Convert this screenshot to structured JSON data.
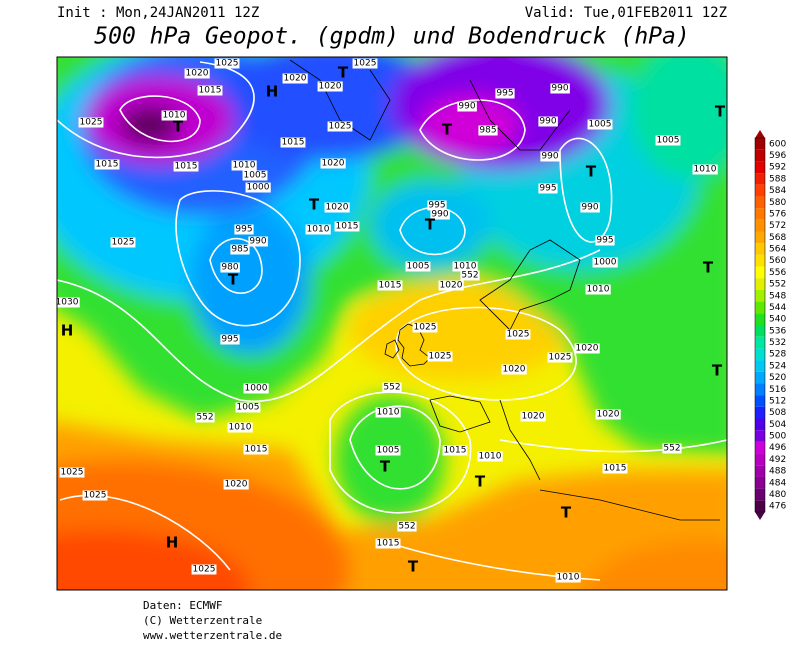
{
  "header": {
    "init": "Init : Mon,24JAN2011 12Z",
    "valid": "Valid: Tue,01FEB2011 12Z",
    "title": "500 hPa Geopot. (gpdm) und Bodendruck (hPa)"
  },
  "colorbar": {
    "levels": [
      476,
      480,
      484,
      488,
      492,
      496,
      500,
      504,
      508,
      512,
      516,
      520,
      524,
      528,
      532,
      536,
      540,
      544,
      548,
      552,
      556,
      560,
      564,
      568,
      572,
      576,
      580,
      584,
      588,
      592,
      596,
      600
    ],
    "colors": [
      "#4b0047",
      "#6a0070",
      "#8a0090",
      "#a000a8",
      "#b800c0",
      "#cc00d8",
      "#7a00e0",
      "#5000e8",
      "#2020ff",
      "#0050ff",
      "#0080ff",
      "#00a8ff",
      "#00c8f0",
      "#00e0d0",
      "#00e8a0",
      "#00e060",
      "#20e020",
      "#60e800",
      "#a0f000",
      "#e0f000",
      "#ffff00",
      "#ffe000",
      "#ffc800",
      "#ffa800",
      "#ff9000",
      "#ff7800",
      "#ff6000",
      "#ff4000",
      "#f02000",
      "#e00000",
      "#c00000",
      "#a00000"
    ]
  },
  "map": {
    "labels": [
      "1020",
      "1025",
      "1015",
      "1020",
      "1020",
      "1025",
      "995",
      "990",
      "990",
      "985",
      "990",
      "1025",
      "1010",
      "1015",
      "1015",
      "1010",
      "1005",
      "1000",
      "1025",
      "1020",
      "1015",
      "1020",
      "1015",
      "1010",
      "995",
      "990",
      "1005",
      "1010",
      "552",
      "1020",
      "1015",
      "980",
      "985",
      "990",
      "995",
      "1025",
      "1030",
      "995",
      "1000",
      "1005",
      "1010",
      "1015",
      "1020",
      "552",
      "552",
      "1010",
      "1005",
      "1015",
      "1010",
      "1025",
      "1025",
      "1025",
      "1025",
      "1020",
      "1020",
      "1020",
      "1020",
      "552",
      "1015",
      "1010",
      "1015",
      "552",
      "1025",
      "1025",
      "1025",
      "1005",
      "1010",
      "1005",
      "990",
      "995",
      "990",
      "995",
      "1000",
      "1010"
    ],
    "systems": [
      "H",
      "T",
      "T",
      "T",
      "T",
      "H",
      "T",
      "T",
      "H",
      "T",
      "T",
      "T",
      "T",
      "T",
      "T",
      "T",
      "T"
    ]
  },
  "credits": [
    "Daten: ECMWF",
    "(C) Wetterzentrale",
    "www.wetterzentrale.de"
  ]
}
